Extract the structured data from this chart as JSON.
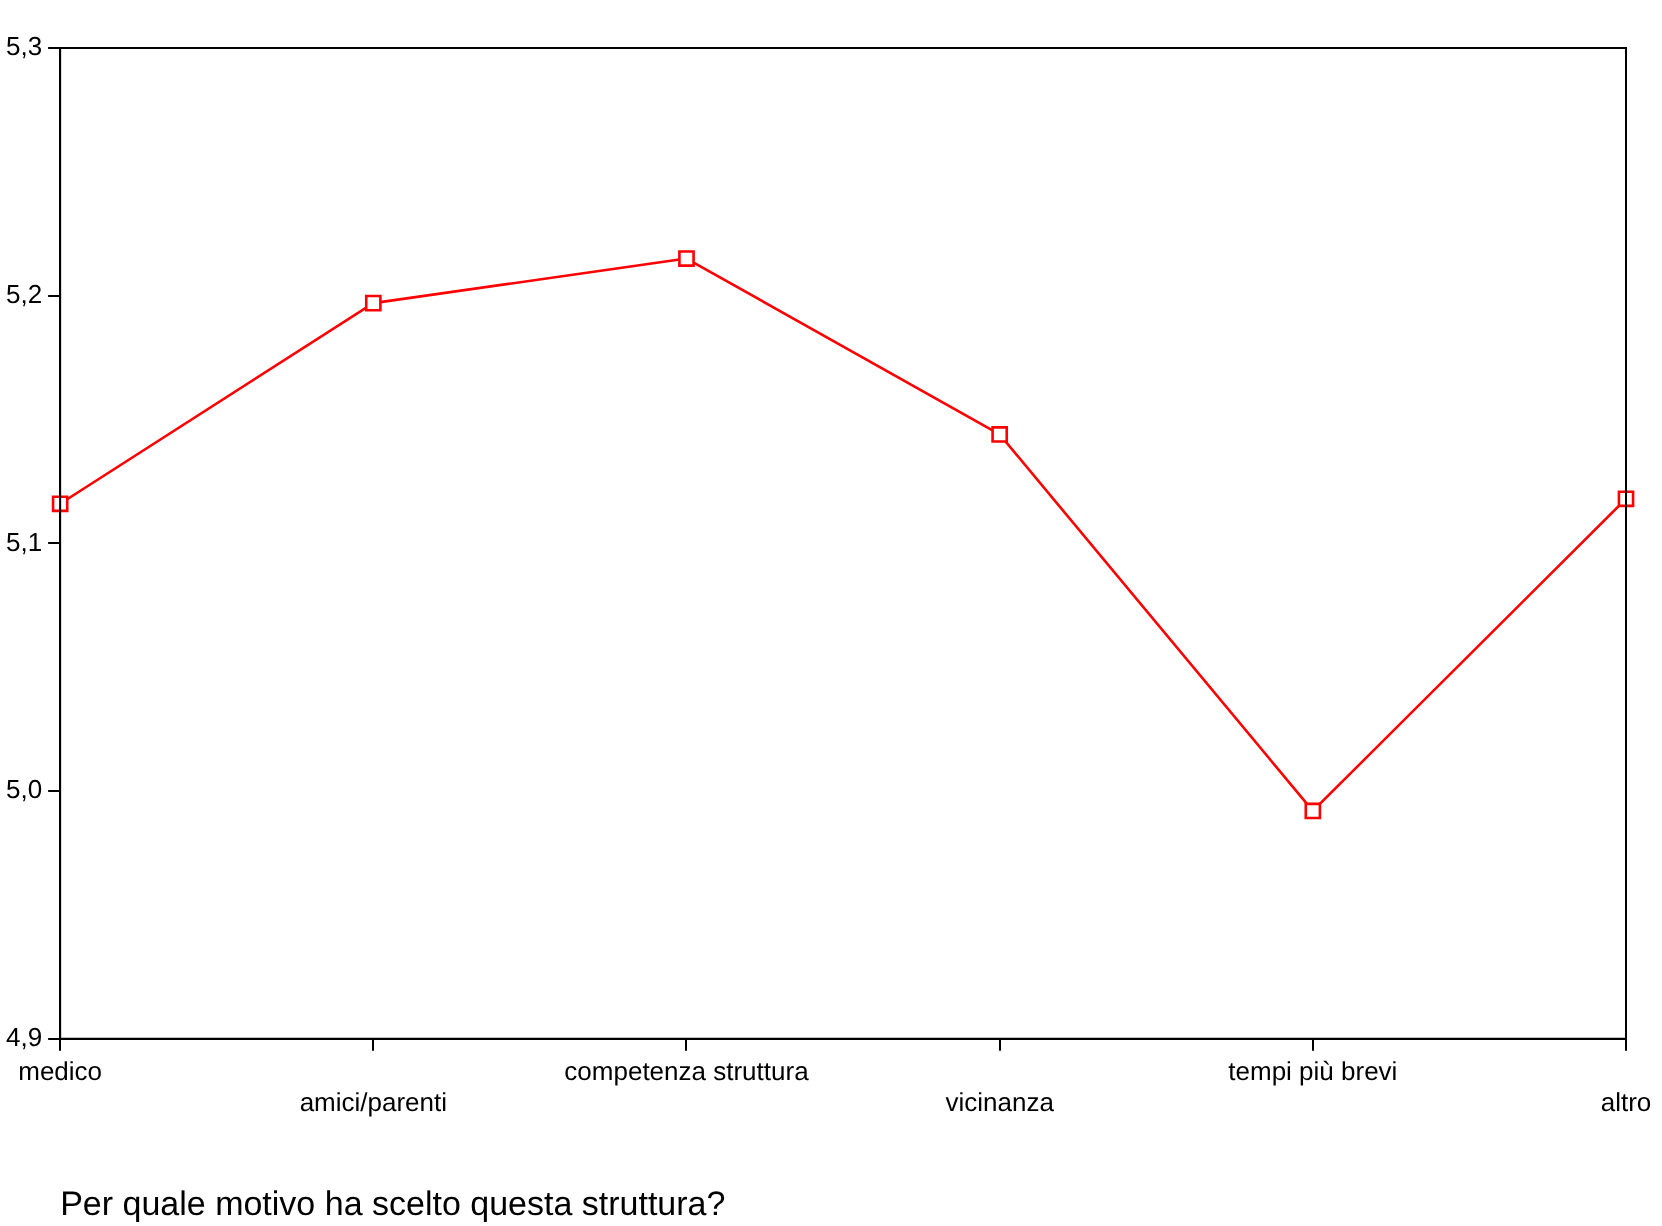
{
  "chart_data": {
    "type": "line",
    "xlabel": "Per quale motivo ha scelto questa struttura?",
    "categories": [
      "medico",
      "amici/parenti",
      "competenza struttura",
      "vicinanza",
      "tempi più brevi",
      "altro"
    ],
    "series": [
      {
        "color": "#ff0000",
        "values": [
          5.116,
          5.197,
          5.215,
          5.144,
          4.992,
          5.118
        ]
      }
    ],
    "ylim": [
      4.9,
      5.3
    ],
    "yticks": [
      {
        "value": 4.9,
        "label": "4,9"
      },
      {
        "value": 5.0,
        "label": "5,0"
      },
      {
        "value": 5.1,
        "label": "5,1"
      },
      {
        "value": 5.2,
        "label": "5,2"
      },
      {
        "value": 5.3,
        "label": "5,3"
      }
    ],
    "grid": false,
    "legend": false,
    "marker": "square",
    "line_style": "solid"
  }
}
